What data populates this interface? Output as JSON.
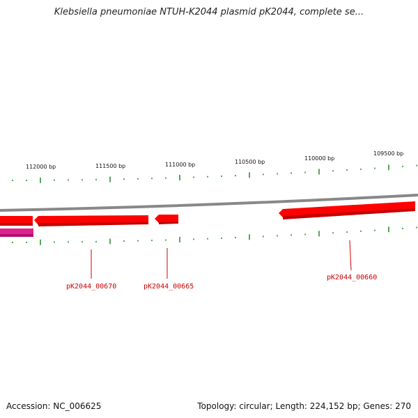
{
  "title": "Klebsiella pneumoniae NTUH-K2044 plasmid pK2044, complete se...",
  "scale_labels": [
    "112000 bp",
    "111500 bp",
    "111000 bp",
    "110500 bp",
    "110000 bp",
    "109500 bp"
  ],
  "genes": [
    {
      "locus_tag": "pK2044_00670",
      "strand": "-",
      "color": "#ff0000"
    },
    {
      "locus_tag": "pK2044_00665",
      "strand": "-",
      "color": "#ff0000"
    },
    {
      "locus_tag": "pK2044_00660",
      "strand": "-",
      "color": "#ff0000"
    }
  ],
  "colors": {
    "backbone": "#888888",
    "gene_forward": "#ff0000",
    "gene_other": "#e0208c",
    "ticks": "#1a8a1a",
    "gene_label": "#cc0000"
  },
  "footer": {
    "accession": "Accession: NC_006625",
    "summary": "Topology: circular; Length: 224,152 bp; Genes: 270"
  }
}
